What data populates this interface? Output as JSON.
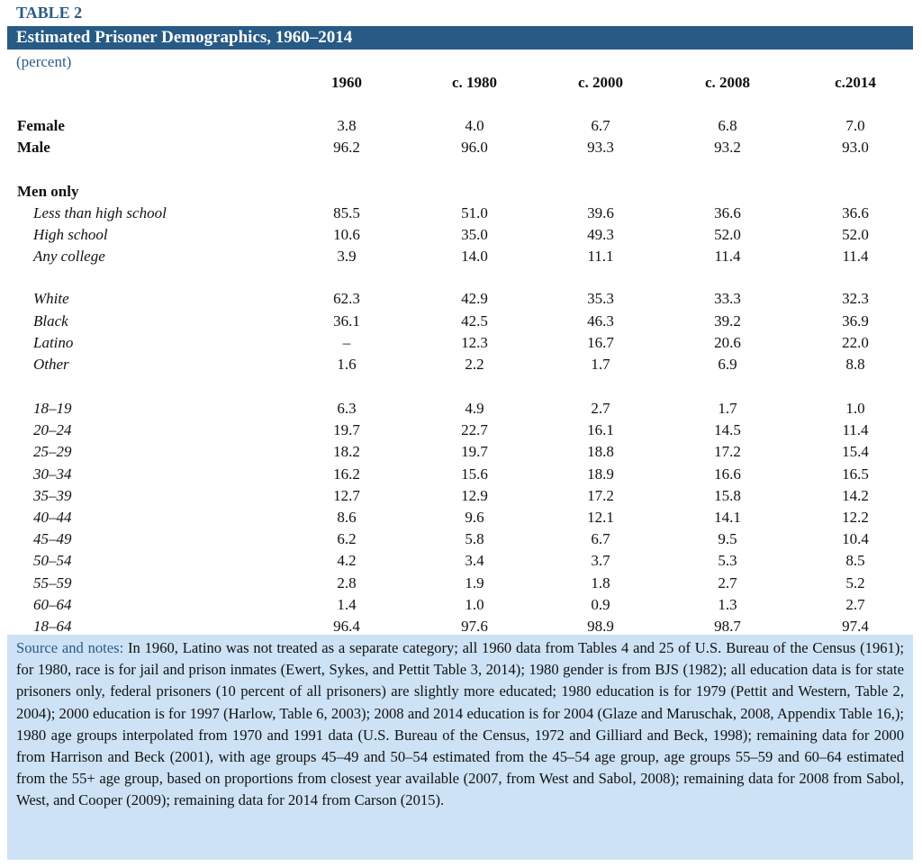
{
  "table_label": "TABLE 2",
  "title": "Estimated Prisoner Demographics, 1960–2014",
  "unit": "(percent)",
  "columns": [
    "1960",
    "c. 1980",
    "c. 2000",
    "c. 2008",
    "c.2014"
  ],
  "gender": [
    {
      "label": "Female",
      "values": [
        "3.8",
        "4.0",
        "6.7",
        "6.8",
        "7.0"
      ]
    },
    {
      "label": "Male",
      "values": [
        "96.2",
        "96.0",
        "93.3",
        "93.2",
        "93.0"
      ]
    }
  ],
  "men_only_heading": "Men only",
  "education": [
    {
      "label": "Less than high school",
      "values": [
        "85.5",
        "51.0",
        "39.6",
        "36.6",
        "36.6"
      ]
    },
    {
      "label": "High school",
      "values": [
        "10.6",
        "35.0",
        "49.3",
        "52.0",
        "52.0"
      ]
    },
    {
      "label": "Any college",
      "values": [
        "3.9",
        "14.0",
        "11.1",
        "11.4",
        "11.4"
      ]
    }
  ],
  "race": [
    {
      "label": "White",
      "values": [
        "62.3",
        "42.9",
        "35.3",
        "33.3",
        "32.3"
      ]
    },
    {
      "label": "Black",
      "values": [
        "36.1",
        "42.5",
        "46.3",
        "39.2",
        "36.9"
      ]
    },
    {
      "label": "Latino",
      "values": [
        "–",
        "12.3",
        "16.7",
        "20.6",
        "22.0"
      ]
    },
    {
      "label": "Other",
      "values": [
        "1.6",
        "2.2",
        "1.7",
        "6.9",
        "8.8"
      ]
    }
  ],
  "age": [
    {
      "label": "18–19",
      "values": [
        "6.3",
        "4.9",
        "2.7",
        "1.7",
        "1.0"
      ]
    },
    {
      "label": "20–24",
      "values": [
        "19.7",
        "22.7",
        "16.1",
        "14.5",
        "11.4"
      ]
    },
    {
      "label": "25–29",
      "values": [
        "18.2",
        "19.7",
        "18.8",
        "17.2",
        "15.4"
      ]
    },
    {
      "label": "30–34",
      "values": [
        "16.2",
        "15.6",
        "18.9",
        "16.6",
        "16.5"
      ]
    },
    {
      "label": "35–39",
      "values": [
        "12.7",
        "12.9",
        "17.2",
        "15.8",
        "14.2"
      ]
    },
    {
      "label": "40–44",
      "values": [
        "8.6",
        "9.6",
        "12.1",
        "14.1",
        "12.2"
      ]
    },
    {
      "label": "45–49",
      "values": [
        "6.2",
        "5.8",
        "6.7",
        "9.5",
        "10.4"
      ]
    },
    {
      "label": "50–54",
      "values": [
        "4.2",
        "3.4",
        "3.7",
        "5.3",
        "8.5"
      ]
    },
    {
      "label": "55–59",
      "values": [
        "2.8",
        "1.9",
        "1.8",
        "2.7",
        "5.2"
      ]
    },
    {
      "label": "60–64",
      "values": [
        "1.4",
        "1.0",
        "0.9",
        "1.3",
        "2.7"
      ]
    },
    {
      "label": "18–64",
      "values": [
        "96.4",
        "97.6",
        "98.9",
        "98.7",
        "97.4"
      ]
    }
  ],
  "notes": {
    "lead": "Source and notes:",
    "text": "In 1960, Latino was not treated as a separate category; all 1960 data from Tables 4 and 25 of U.S. Bureau of the Census (1961); for 1980, race is for jail and prison inmates (Ewert, Sykes, and Pettit Table 3, 2014); 1980 gender is from BJS (1982); all education data is for state prisoners only, federal prisoners (10 percent of all prisoners) are slightly more educated; 1980 education is for 1979 (Pettit and Western, Table 2, 2004); 2000 education is for 1997 (Harlow, Table 6, 2003); 2008 and 2014 education is for 2004 (Glaze and Maruschak, 2008, Appendix Table 16,); 1980 age groups interpolated from 1970 and 1991 data (U.S. Bureau of the Census, 1972 and Gilliard and Beck, 1998); remaining data for 2000 from Harrison and Beck (2001), with age groups 45–49 and 50–54 estimated from the 45–54 age group, age groups 55–59 and 60–64 estimated from the 55+ age group, based on proportions from closest year available (2007, from West and Sabol, 2008); remaining data for 2008 from Sabol, West, and Cooper (2009); remaining data for 2014 from Carson (2015)."
  }
}
